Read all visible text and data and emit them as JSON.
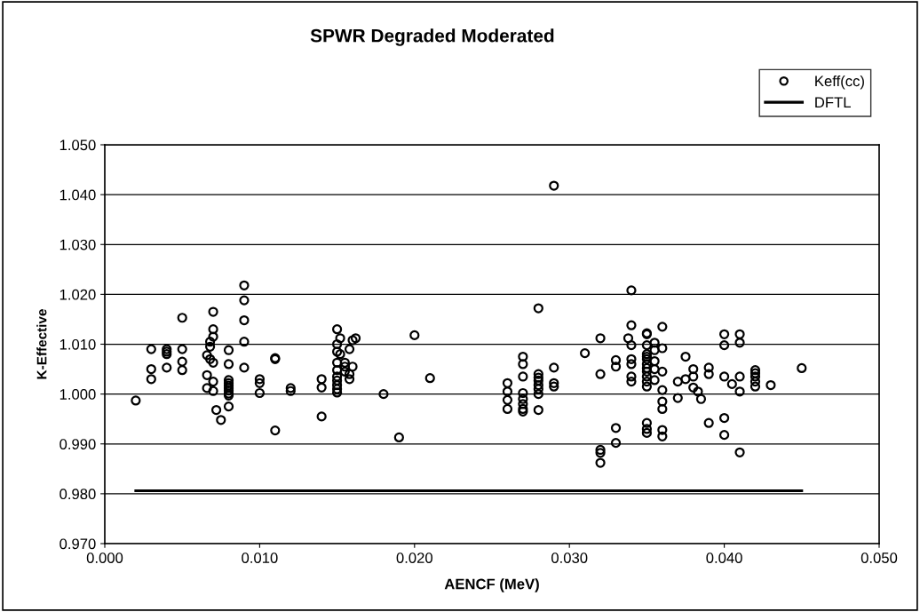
{
  "chart_data": {
    "type": "scatter",
    "title": "SPWR Degraded Moderated",
    "xlabel": "AENCF (MeV)",
    "ylabel": "K-Effective",
    "xlim": [
      0.0,
      0.05
    ],
    "xticks": [
      {
        "value": 0.0,
        "label": "0.000"
      },
      {
        "value": 0.01,
        "label": "0.010"
      },
      {
        "value": 0.02,
        "label": "0.020"
      },
      {
        "value": 0.03,
        "label": "0.030"
      },
      {
        "value": 0.04,
        "label": "0.040"
      },
      {
        "value": 0.05,
        "label": "0.050"
      }
    ],
    "ylim": [
      0.97,
      1.05
    ],
    "yticks": [
      {
        "value": 0.97,
        "label": "0.970"
      },
      {
        "value": 0.98,
        "label": "0.980"
      },
      {
        "value": 0.99,
        "label": "0.990"
      },
      {
        "value": 1.0,
        "label": "1.000"
      },
      {
        "value": 1.01,
        "label": "1.010"
      },
      {
        "value": 1.02,
        "label": "1.020"
      },
      {
        "value": 1.03,
        "label": "1.030"
      },
      {
        "value": 1.04,
        "label": "1.040"
      },
      {
        "value": 1.05,
        "label": "1.050"
      }
    ],
    "grid": "y",
    "legend": "top right",
    "marker": "circle",
    "series": [
      {
        "name": "Keff(cc)",
        "color": "#000000",
        "x": [
          0.002,
          0.003,
          0.003,
          0.003,
          0.004,
          0.004,
          0.004,
          0.004,
          0.005,
          0.005,
          0.005,
          0.005,
          0.007,
          0.007,
          0.007,
          0.0068,
          0.0068,
          0.0066,
          0.0068,
          0.007,
          0.0066,
          0.007,
          0.0066,
          0.007,
          0.0072,
          0.0075,
          0.008,
          0.008,
          0.008,
          0.008,
          0.008,
          0.008,
          0.008,
          0.008,
          0.008,
          0.008,
          0.009,
          0.009,
          0.009,
          0.009,
          0.009,
          0.01,
          0.01,
          0.01,
          0.011,
          0.011,
          0.011,
          0.012,
          0.012,
          0.014,
          0.014,
          0.014,
          0.015,
          0.0152,
          0.015,
          0.015,
          0.0152,
          0.015,
          0.015,
          0.015,
          0.015,
          0.015,
          0.015,
          0.015,
          0.0155,
          0.0155,
          0.0155,
          0.0162,
          0.016,
          0.0158,
          0.016,
          0.0158,
          0.0158,
          0.018,
          0.019,
          0.02,
          0.021,
          0.026,
          0.026,
          0.026,
          0.026,
          0.027,
          0.027,
          0.027,
          0.027,
          0.027,
          0.027,
          0.027,
          0.027,
          0.028,
          0.028,
          0.028,
          0.028,
          0.028,
          0.028,
          0.028,
          0.028,
          0.029,
          0.029,
          0.029,
          0.029,
          0.031,
          0.032,
          0.032,
          0.032,
          0.032,
          0.032,
          0.033,
          0.033,
          0.033,
          0.033,
          0.034,
          0.034,
          0.0338,
          0.034,
          0.034,
          0.034,
          0.034,
          0.034,
          0.035,
          0.035,
          0.035,
          0.035,
          0.035,
          0.035,
          0.035,
          0.035,
          0.035,
          0.035,
          0.035,
          0.035,
          0.035,
          0.035,
          0.035,
          0.0355,
          0.0355,
          0.0355,
          0.0355,
          0.0355,
          0.036,
          0.036,
          0.036,
          0.036,
          0.036,
          0.036,
          0.036,
          0.036,
          0.037,
          0.037,
          0.0375,
          0.0375,
          0.038,
          0.038,
          0.038,
          0.0383,
          0.0385,
          0.039,
          0.039,
          0.039,
          0.04,
          0.04,
          0.04,
          0.04,
          0.04,
          0.0405,
          0.041,
          0.041,
          0.041,
          0.041,
          0.041,
          0.042,
          0.042,
          0.042,
          0.042,
          0.042,
          0.043,
          0.045
        ],
        "values": [
          0.9987,
          1.009,
          1.005,
          1.003,
          1.0085,
          1.009,
          1.008,
          1.0053,
          1.0153,
          1.009,
          1.0065,
          1.0048,
          1.0165,
          1.013,
          1.0115,
          1.0105,
          1.0095,
          1.0078,
          1.007,
          1.0063,
          1.0038,
          1.0025,
          1.0012,
          1.0006,
          0.9968,
          0.9948,
          1.0088,
          1.006,
          1.0028,
          1.0022,
          1.0017,
          1.0012,
          1.0007,
          1.0001,
          0.9997,
          0.9975,
          1.0218,
          1.0188,
          1.0148,
          1.0105,
          1.0053,
          1.003,
          1.0022,
          1.0002,
          1.0072,
          1.007,
          0.9927,
          1.0012,
          1.0006,
          1.003,
          1.0013,
          0.9955,
          1.013,
          1.0112,
          1.01,
          1.0085,
          1.008,
          1.0063,
          1.0048,
          1.0035,
          1.0027,
          1.0018,
          1.001,
          1.0003,
          1.0063,
          1.0055,
          1.0045,
          1.0112,
          1.0108,
          1.009,
          1.0055,
          1.004,
          1.003,
          1.0,
          0.9913,
          1.0118,
          1.0032,
          1.0022,
          1.0005,
          0.9988,
          0.997,
          1.0075,
          1.006,
          1.0035,
          1.0002,
          0.999,
          0.998,
          0.997,
          0.9965,
          1.0172,
          1.004,
          1.0033,
          1.0027,
          1.0018,
          1.001,
          1.0,
          0.9968,
          1.0418,
          1.0053,
          1.0022,
          1.0015,
          1.0082,
          1.0112,
          1.004,
          0.9888,
          0.9882,
          0.9862,
          1.0068,
          1.0055,
          0.9932,
          0.9902,
          1.0208,
          1.0138,
          1.0112,
          1.0098,
          1.007,
          1.006,
          1.0035,
          1.0025,
          1.0122,
          1.012,
          1.0098,
          1.008,
          1.0075,
          1.007,
          1.006,
          1.0052,
          1.0045,
          1.0035,
          1.0025,
          1.0015,
          0.9942,
          0.993,
          0.9922,
          1.0103,
          1.0088,
          1.0066,
          1.005,
          1.0028,
          1.0135,
          1.0092,
          1.0045,
          1.0008,
          0.9985,
          0.997,
          0.9928,
          0.9915,
          1.0025,
          0.9992,
          1.0075,
          1.003,
          1.0035,
          1.005,
          1.0013,
          1.0005,
          0.999,
          1.0053,
          1.004,
          0.9942,
          1.012,
          1.0098,
          1.0035,
          0.9952,
          0.9918,
          1.002,
          1.012,
          1.0103,
          1.0035,
          1.0005,
          0.9883,
          1.0048,
          1.0042,
          1.0035,
          1.0025,
          1.0015,
          1.0018,
          1.0052
        ]
      },
      {
        "name": "DFTL",
        "type": "line",
        "color": "#000000",
        "marker": "none",
        "x": [
          0.002,
          0.045
        ],
        "values": [
          0.9806,
          0.9806
        ]
      }
    ]
  }
}
